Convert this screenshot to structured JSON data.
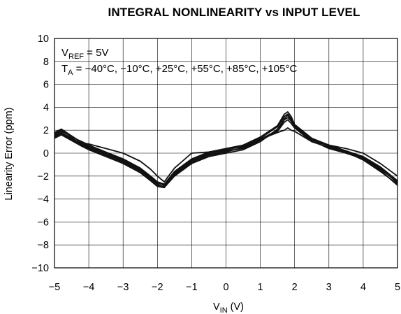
{
  "chart_data": {
    "type": "line",
    "title": "INTEGRAL NONLINEARITY vs INPUT LEVEL",
    "xlabel_main": "V",
    "xlabel_sub": "IN",
    "xlabel_unit": " (V)",
    "ylabel": "Linearity Error (ppm)",
    "xlim": [
      -5,
      5
    ],
    "ylim": [
      -10,
      10
    ],
    "xticks": [
      -5,
      -4,
      -3,
      -2,
      -1,
      0,
      1,
      2,
      3,
      4,
      5
    ],
    "xtick_labels": [
      "−5",
      "−4",
      "−3",
      "−2",
      "−1",
      "0",
      "1",
      "2",
      "3",
      "4",
      "5"
    ],
    "yticks": [
      -10,
      -8,
      -6,
      -4,
      -2,
      0,
      2,
      4,
      6,
      8,
      10
    ],
    "ytick_labels": [
      "−10",
      "−8",
      "−6",
      "−4",
      "−2",
      "0",
      "2",
      "4",
      "6",
      "8",
      "10"
    ],
    "grid": true,
    "annotations": {
      "line1_main": "V",
      "line1_sub": "REF",
      "line1_rest": " = 5V",
      "line2_main": "T",
      "line2_sub": "A",
      "line2_rest": " = −40°C,  −10°C, +25°C, +55°C, +85°C, +105°C"
    },
    "series": [
      {
        "x": [
          -5,
          -4.8,
          -4.5,
          -4.2,
          -4,
          -3.5,
          -3,
          -2.5,
          -2.2,
          -2,
          -1.8,
          -1.5,
          -1,
          -0.5,
          0,
          0.5,
          1,
          1.5,
          1.7,
          1.8,
          1.9,
          2,
          2.5,
          3,
          3.5,
          4,
          4.5,
          5
        ],
        "y": [
          1.8,
          2.1,
          1.5,
          0.9,
          0.6,
          0.0,
          -0.6,
          -1.4,
          -2.1,
          -2.6,
          -2.8,
          -1.7,
          -0.6,
          0.0,
          0.3,
          0.6,
          1.3,
          2.3,
          3.2,
          3.4,
          3.0,
          2.4,
          1.2,
          0.6,
          0.1,
          -0.4,
          -1.3,
          -2.6
        ]
      },
      {
        "x": [
          -5,
          -4.8,
          -4.5,
          -4.2,
          -4,
          -3.5,
          -3,
          -2.5,
          -2.2,
          -2,
          -1.8,
          -1.5,
          -1,
          -0.5,
          0,
          0.5,
          1,
          1.5,
          1.7,
          1.8,
          1.9,
          2,
          2.5,
          3,
          3.5,
          4,
          4.5,
          5
        ],
        "y": [
          1.5,
          1.8,
          1.3,
          0.8,
          0.5,
          -0.1,
          -0.7,
          -1.5,
          -2.2,
          -2.7,
          -3.0,
          -1.9,
          -0.8,
          -0.2,
          0.1,
          0.5,
          1.2,
          2.0,
          2.9,
          3.1,
          2.8,
          2.3,
          1.1,
          0.4,
          0.0,
          -0.5,
          -1.5,
          -2.8
        ]
      },
      {
        "x": [
          -5,
          -4.8,
          -4.5,
          -4.2,
          -4,
          -3.5,
          -3,
          -2.5,
          -2.2,
          -2,
          -1.8,
          -1.5,
          -1,
          -0.5,
          0,
          0.5,
          1,
          1.5,
          1.7,
          1.8,
          1.9,
          2,
          2.5,
          3,
          3.5,
          4,
          4.5,
          5
        ],
        "y": [
          1.7,
          2.0,
          1.4,
          1.0,
          0.7,
          0.1,
          -0.5,
          -1.3,
          -2.0,
          -2.5,
          -2.7,
          -1.6,
          -0.5,
          0.1,
          0.4,
          0.7,
          1.4,
          2.4,
          3.4,
          3.6,
          3.2,
          2.5,
          1.3,
          0.7,
          0.2,
          -0.3,
          -1.2,
          -2.4
        ]
      },
      {
        "x": [
          -5,
          -4.8,
          -4.5,
          -4.2,
          -4,
          -3.5,
          -3,
          -2.5,
          -2.2,
          -2,
          -1.8,
          -1.5,
          -1,
          -0.5,
          0,
          0.5,
          1,
          1.5,
          1.7,
          1.8,
          1.9,
          2,
          2.5,
          3,
          3.5,
          4,
          4.5,
          5
        ],
        "y": [
          1.4,
          1.7,
          1.2,
          0.7,
          0.4,
          -0.2,
          -0.8,
          -1.6,
          -2.3,
          -2.8,
          -2.9,
          -1.8,
          -0.7,
          -0.1,
          0.2,
          0.4,
          1.1,
          1.9,
          2.7,
          2.9,
          2.6,
          2.2,
          1.0,
          0.5,
          0.1,
          -0.6,
          -1.6,
          -2.7
        ]
      },
      {
        "x": [
          -5,
          -4.8,
          -4.5,
          -4.2,
          -4,
          -3.5,
          -3,
          -2.5,
          -2.2,
          -2,
          -1.8,
          -1.5,
          -1,
          -0.5,
          0,
          0.5,
          1,
          1.5,
          1.7,
          1.8,
          1.9,
          2,
          2.5,
          3,
          3.5,
          4,
          4.5,
          5
        ],
        "y": [
          1.6,
          1.9,
          1.5,
          0.9,
          0.8,
          0.4,
          0.0,
          -0.7,
          -1.4,
          -2.0,
          -2.5,
          -1.3,
          0.0,
          0.1,
          0.3,
          0.6,
          1.2,
          1.8,
          2.0,
          2.2,
          2.0,
          1.9,
          1.0,
          0.7,
          0.4,
          0.0,
          -0.9,
          -2.0
        ]
      },
      {
        "x": [
          -5,
          -4.8,
          -4.5,
          -4.2,
          -4,
          -3.5,
          -3,
          -2.5,
          -2.2,
          -2,
          -1.8,
          -1.5,
          -1,
          -0.5,
          0,
          0.5,
          1,
          1.5,
          1.7,
          1.8,
          1.9,
          2,
          2.5,
          3,
          3.5,
          4,
          4.5,
          5
        ],
        "y": [
          1.3,
          1.6,
          1.1,
          0.6,
          0.3,
          -0.3,
          -0.9,
          -1.7,
          -2.4,
          -2.9,
          -3.0,
          -2.0,
          -0.9,
          -0.3,
          0.0,
          0.3,
          1.0,
          2.1,
          3.0,
          3.3,
          2.9,
          2.4,
          1.2,
          0.6,
          0.2,
          -0.4,
          -1.4,
          -2.5
        ]
      }
    ]
  }
}
